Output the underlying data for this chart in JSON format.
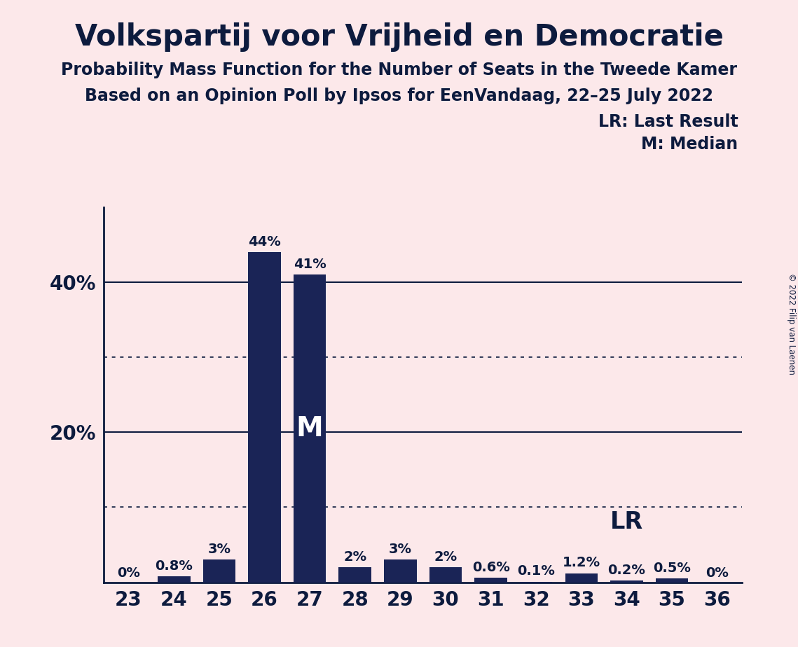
{
  "title": "Volkspartij voor Vrijheid en Democratie",
  "subtitle1": "Probability Mass Function for the Number of Seats in the Tweede Kamer",
  "subtitle2": "Based on an Opinion Poll by Ipsos for EenVandaag, 22–25 July 2022",
  "copyright": "© 2022 Filip van Laenen",
  "seats": [
    23,
    24,
    25,
    26,
    27,
    28,
    29,
    30,
    31,
    32,
    33,
    34,
    35,
    36
  ],
  "values": [
    0.0,
    0.8,
    3.0,
    44.0,
    41.0,
    2.0,
    3.0,
    2.0,
    0.6,
    0.1,
    1.2,
    0.2,
    0.5,
    0.0
  ],
  "labels": [
    "0%",
    "0.8%",
    "3%",
    "44%",
    "41%",
    "2%",
    "3%",
    "2%",
    "0.6%",
    "0.1%",
    "1.2%",
    "0.2%",
    "0.5%",
    "0%"
  ],
  "bar_color": "#1a2456",
  "background_color": "#fce8ea",
  "text_color": "#0d1b3e",
  "median_seat": 27,
  "lr_seat": 34,
  "ylim": [
    0,
    50
  ],
  "solid_yticks": [
    20,
    40
  ],
  "dotted_yticks": [
    10,
    30
  ],
  "lr_label": "LR",
  "lr_legend": "LR: Last Result",
  "m_legend": "M: Median",
  "title_fontsize": 30,
  "subtitle_fontsize": 17,
  "bar_label_fontsize": 14,
  "axis_tick_fontsize": 20,
  "legend_fontsize": 17,
  "m_fontsize": 28,
  "lr_marker_fontsize": 24
}
